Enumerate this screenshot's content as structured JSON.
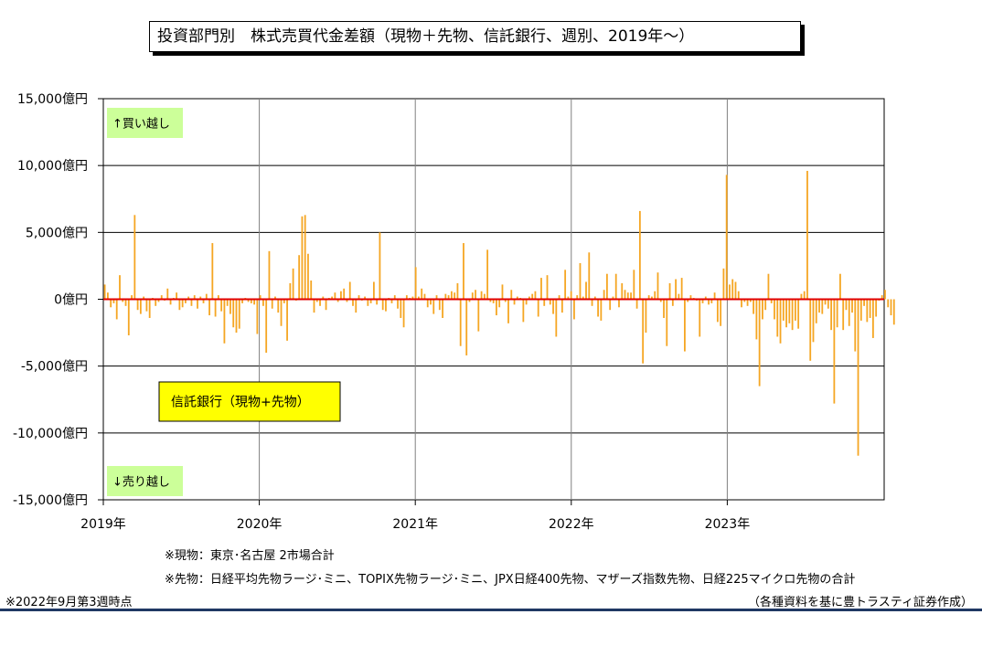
{
  "title": "投資部門別　株式売買代金差額（現物＋先物、信託銀行、週別、2019年～）",
  "chart_data": {
    "type": "bar",
    "title": "投資部門別　株式売買代金差額（現物＋先物、信託銀行、週別、2019年～）",
    "ylim": [
      -15000,
      15000
    ],
    "y_ticks": [
      15000,
      10000,
      5000,
      0,
      -5000,
      -10000,
      -15000
    ],
    "y_tick_labels": [
      "15,000億円",
      "10,000億円",
      "5,000億円",
      "0億円",
      "-5,000億円",
      "-10,000億円",
      "-15,000億円"
    ],
    "x_tick_labels": [
      "2019年",
      "2020年",
      "2021年",
      "2022年",
      "2023年"
    ],
    "x_range": [
      "2019-01",
      "2024-01"
    ],
    "grid": true,
    "bar_color": "#f5a623",
    "zero_line_color": "#e00000",
    "unit": "億円",
    "weekly_values": [
      1100,
      500,
      -600,
      -300,
      -1500,
      1800,
      -200,
      -500,
      -2700,
      300,
      6300,
      -800,
      -1100,
      200,
      -900,
      -1400,
      100,
      -500,
      -200,
      300,
      -100,
      800,
      -400,
      100,
      500,
      -800,
      -600,
      -300,
      200,
      -500,
      300,
      -700,
      200,
      -300,
      400,
      -1200,
      4200,
      -1300,
      300,
      -900,
      -3300,
      -500,
      -1100,
      -2100,
      -2500,
      -2200,
      -300,
      100,
      -200,
      -300,
      -400,
      -2600,
      300,
      -500,
      -4000,
      3600,
      -700,
      200,
      -1000,
      -2000,
      -300,
      -3100,
      1200,
      2300,
      -100,
      3300,
      6200,
      6300,
      3400,
      1400,
      -1000,
      -200,
      -500,
      200,
      -800,
      100,
      200,
      500,
      -200,
      600,
      800,
      -200,
      1300,
      -500,
      -1000,
      300,
      -100,
      200,
      -500,
      -300,
      1300,
      -400,
      5000,
      -800,
      -900,
      100,
      -300,
      300,
      -700,
      -1400,
      -2100,
      300,
      100,
      200,
      2400,
      200,
      800,
      400,
      -600,
      -400,
      -1100,
      300,
      -800,
      -1400,
      400,
      300,
      600,
      500,
      1200,
      -3500,
      4200,
      -4200,
      -200,
      500,
      700,
      -2400,
      600,
      400,
      3700,
      -200,
      -300,
      -1200,
      -600,
      1100,
      -200,
      -1800,
      700,
      -400,
      200,
      100,
      -1700,
      -400,
      200,
      400,
      600,
      -1300,
      1600,
      -500,
      1800,
      -400,
      -1100,
      -2800,
      300,
      -1000,
      2200,
      200,
      600,
      -1500,
      300,
      2700,
      200,
      1300,
      3500,
      -500,
      200,
      -1300,
      -1600,
      700,
      1900,
      -800,
      200,
      1900,
      -600,
      1200,
      700,
      500,
      500,
      2200,
      -700,
      6600,
      -4800,
      -2500,
      300,
      200,
      600,
      2000,
      -200,
      -1400,
      -3500,
      1200,
      -500,
      1500,
      400,
      1600,
      -3900,
      -200,
      300,
      100,
      -100,
      -2800,
      -300,
      200,
      -400,
      -300,
      500,
      -1700,
      -2000,
      2300,
      9300,
      1100,
      1500,
      1300,
      600,
      -600,
      -200,
      -500,
      -200,
      -1100,
      -3000,
      -6500,
      -1500,
      -800,
      1900,
      -300,
      -1500,
      -2800,
      -3300,
      -1600,
      -2100,
      -1800,
      -2300,
      -1600,
      -2200,
      400,
      600,
      9600,
      -4600,
      -3200,
      -1800,
      -1000,
      -1100,
      -400,
      -700,
      -2300,
      -7800,
      -2100,
      1900,
      -2300,
      -800,
      -2000,
      -1000,
      -3900,
      -11700,
      -1600,
      -500,
      -1700,
      -1400,
      -2900,
      -1300,
      -100,
      300,
      700,
      -600,
      -1200,
      -1900
    ]
  },
  "legend_label": "信託銀行（現物+先物）",
  "annotation_buy": "↑買い越し",
  "annotation_sell": "↓売り越し",
  "notes": {
    "genbutsu": "※現物：東京･名古屋 2市場合計",
    "sakimono": "※先物：日経平均先物ラージ･ミニ、TOPIX先物ラージ･ミニ、JPX日経400先物、マザーズ指数先物、日経225マイクロ先物の合計",
    "timepoint": "※2022年9月第3週時点",
    "source": "（各種資料を基に豊トラスティ証券作成）"
  }
}
